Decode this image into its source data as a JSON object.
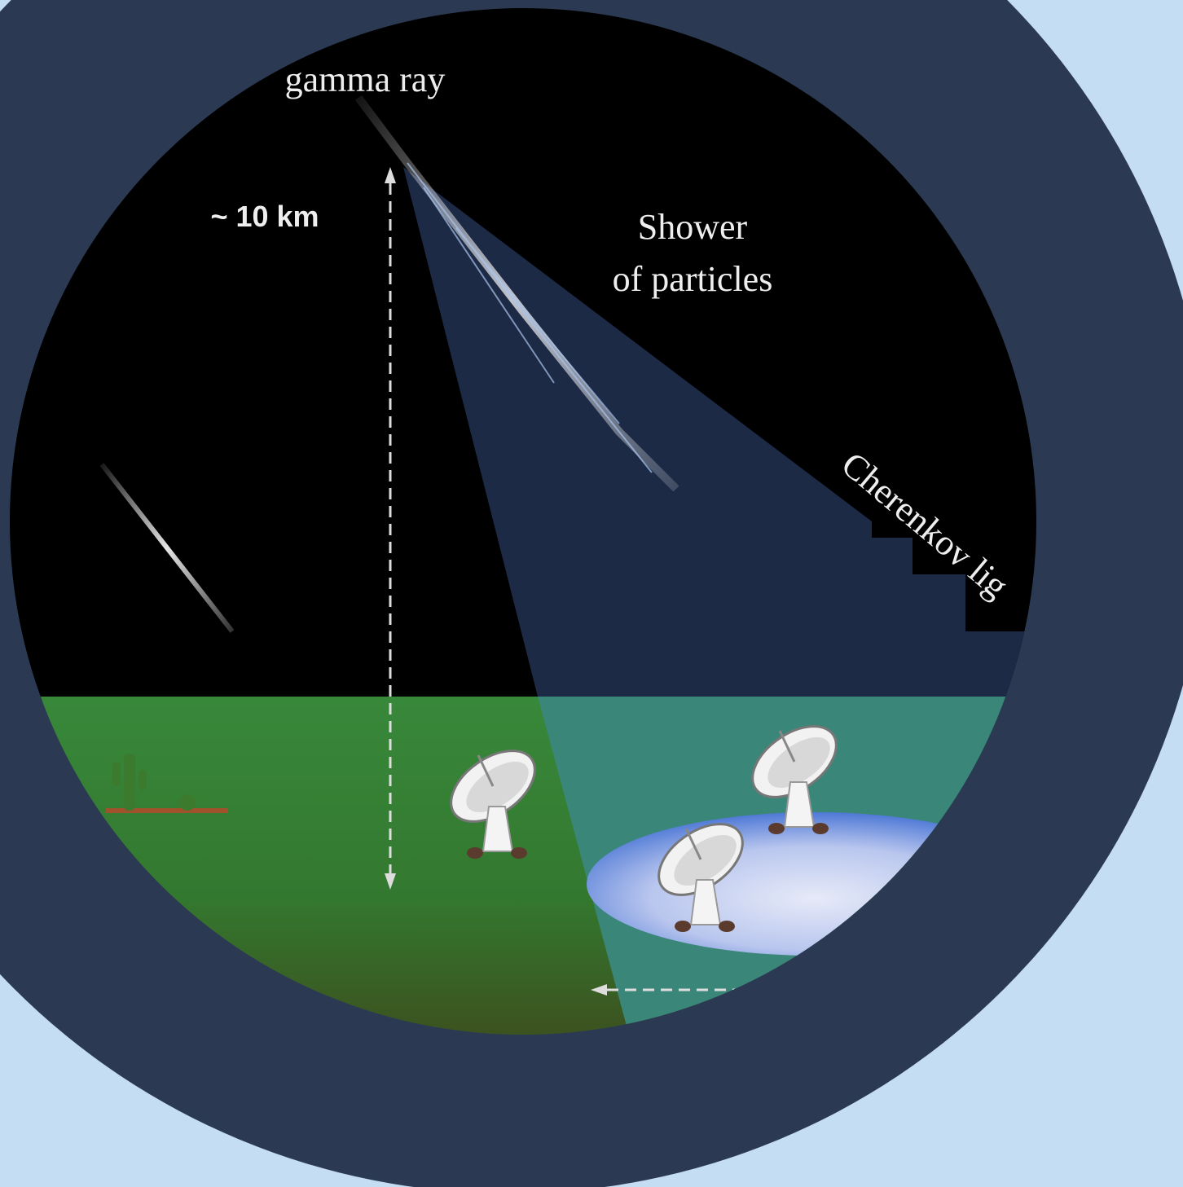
{
  "labels": {
    "gamma_ray": "gamma ray",
    "height": "~ 10 km",
    "shower": [
      "Shower",
      "of particles"
    ],
    "cherenkov": "Cherenkov lig"
  }
}
